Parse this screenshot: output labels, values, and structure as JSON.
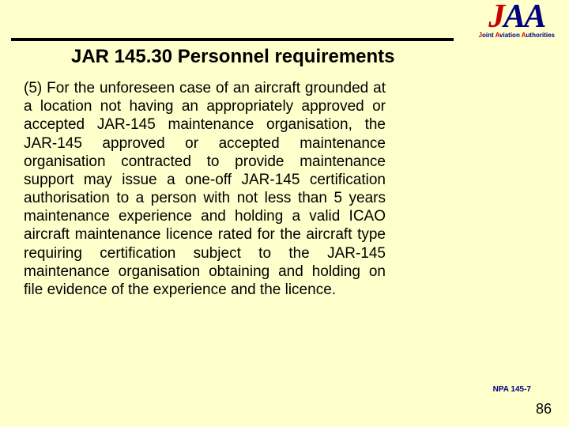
{
  "logo": {
    "main_j": "J",
    "main_aa": "AA",
    "sub_j": "J",
    "sub_rest1": "oint ",
    "sub_a1": "A",
    "sub_rest2": "viation ",
    "sub_a2": "A",
    "sub_rest3": "uthorities"
  },
  "title": "JAR 145.30 Personnel requirements",
  "body": "(5) For the unforeseen case of an aircraft grounded at a location not having an appropriately approved or accepted JAR-145 maintenance organisation, the JAR-145 approved or accepted maintenance organisation contracted to provide maintenance support may issue a  one-off JAR-145 certification authorisation to a person with not less than 5 years maintenance experience and holding a valid ICAO aircraft maintenance licence rated for the aircraft type  requiring certification subject to the JAR-145 maintenance organisation obtaining and holding on file evidence of the experience and the licence.",
  "npa": "NPA 145-7",
  "page": "86",
  "colors": {
    "background": "#ffffcc",
    "logo_red": "#cc0000",
    "logo_navy": "#000080",
    "text": "#000000"
  }
}
